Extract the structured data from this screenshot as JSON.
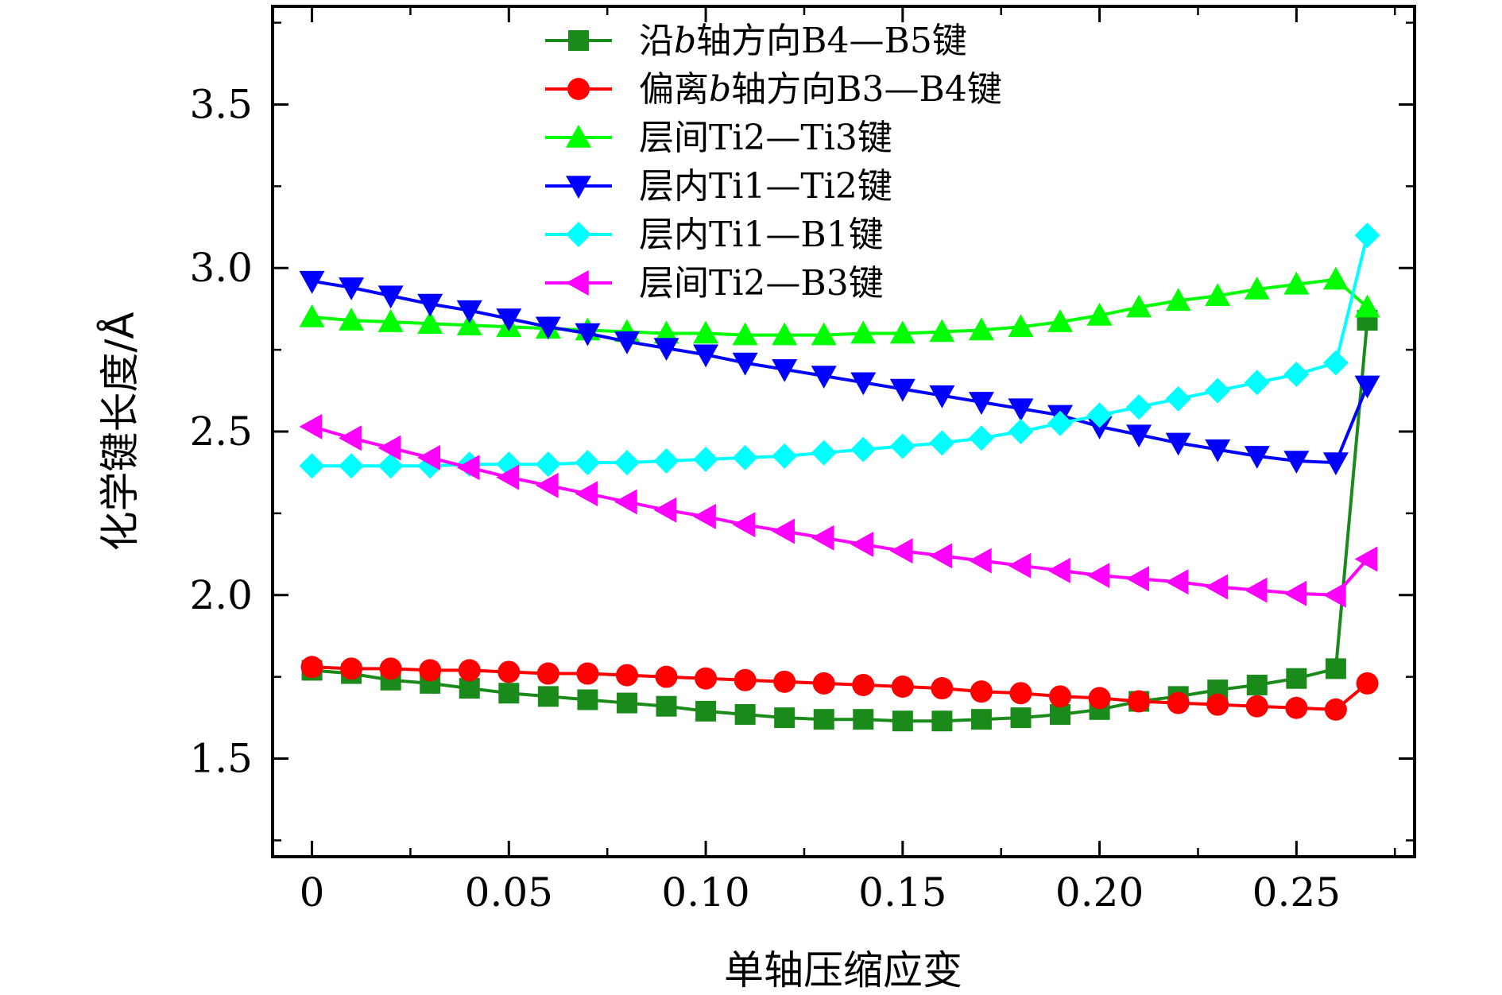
{
  "chart_data": {
    "type": "line",
    "xlabel": "单轴压缩应变",
    "ylabel": "化学键长度/Å",
    "xlim": [
      -0.01,
      0.28
    ],
    "ylim": [
      1.2,
      3.8
    ],
    "x_ticks": [
      0,
      0.05,
      0.1,
      0.15,
      0.2,
      0.25
    ],
    "x_tick_labels": [
      "0",
      "0.05",
      "0.10",
      "0.15",
      "0.20",
      "0.25"
    ],
    "y_ticks": [
      1.5,
      2.0,
      2.5,
      3.0,
      3.5
    ],
    "y_tick_labels": [
      "1.5",
      "2.0",
      "2.5",
      "3.0",
      "3.5"
    ],
    "x": [
      0,
      0.01,
      0.02,
      0.03,
      0.04,
      0.05,
      0.06,
      0.07,
      0.08,
      0.09,
      0.1,
      0.11,
      0.12,
      0.13,
      0.14,
      0.15,
      0.16,
      0.17,
      0.18,
      0.19,
      0.2,
      0.21,
      0.22,
      0.23,
      0.24,
      0.25,
      0.26,
      0.268
    ],
    "legend_position": "top-center",
    "series": [
      {
        "name": "沿b轴方向B4—B5键",
        "name_parts": [
          "沿",
          "b",
          "轴方向B4—B5键"
        ],
        "color": "#1a8a1a",
        "marker": "square",
        "values": [
          1.77,
          1.76,
          1.74,
          1.73,
          1.715,
          1.7,
          1.69,
          1.68,
          1.67,
          1.66,
          1.645,
          1.635,
          1.625,
          1.62,
          1.62,
          1.615,
          1.615,
          1.62,
          1.625,
          1.635,
          1.65,
          1.675,
          1.69,
          1.71,
          1.725,
          1.745,
          1.775,
          2.84
        ]
      },
      {
        "name": "偏离b轴方向B3—B4键",
        "name_parts": [
          "偏离",
          "b",
          "轴方向B3—B4键"
        ],
        "color": "#ff0000",
        "marker": "circle",
        "values": [
          1.78,
          1.775,
          1.775,
          1.77,
          1.77,
          1.765,
          1.76,
          1.76,
          1.755,
          1.75,
          1.745,
          1.74,
          1.735,
          1.73,
          1.725,
          1.72,
          1.715,
          1.705,
          1.7,
          1.69,
          1.685,
          1.675,
          1.67,
          1.665,
          1.66,
          1.655,
          1.65,
          1.73
        ]
      },
      {
        "name": "层间Ti2—Ti3键",
        "name_parts": [
          "层间Ti2—Ti3键"
        ],
        "color": "#00ff00",
        "marker": "triangle-up",
        "values": [
          2.85,
          2.84,
          2.835,
          2.83,
          2.825,
          2.82,
          2.815,
          2.81,
          2.805,
          2.8,
          2.8,
          2.795,
          2.795,
          2.795,
          2.8,
          2.8,
          2.805,
          2.81,
          2.82,
          2.835,
          2.855,
          2.88,
          2.9,
          2.915,
          2.935,
          2.95,
          2.965,
          2.88
        ]
      },
      {
        "name": "层内Ti1—Ti2键",
        "name_parts": [
          "层内Ti1—Ti2键"
        ],
        "color": "#0000ff",
        "marker": "triangle-down",
        "values": [
          2.96,
          2.94,
          2.915,
          2.89,
          2.87,
          2.845,
          2.82,
          2.8,
          2.775,
          2.755,
          2.735,
          2.71,
          2.69,
          2.67,
          2.65,
          2.63,
          2.61,
          2.59,
          2.57,
          2.55,
          2.515,
          2.49,
          2.465,
          2.445,
          2.425,
          2.41,
          2.405,
          2.64
        ]
      },
      {
        "name": "层内Ti1—B1键",
        "name_parts": [
          "层内Ti1—B1键"
        ],
        "color": "#00ffff",
        "marker": "diamond",
        "values": [
          2.395,
          2.395,
          2.395,
          2.395,
          2.4,
          2.4,
          2.4,
          2.405,
          2.405,
          2.41,
          2.415,
          2.42,
          2.425,
          2.435,
          2.445,
          2.455,
          2.465,
          2.48,
          2.5,
          2.525,
          2.55,
          2.575,
          2.6,
          2.625,
          2.65,
          2.675,
          2.71,
          3.1
        ]
      },
      {
        "name": "层间Ti2—B3键",
        "name_parts": [
          "层间Ti2—B3键"
        ],
        "color": "#ff00ff",
        "marker": "triangle-left",
        "values": [
          2.515,
          2.48,
          2.45,
          2.42,
          2.39,
          2.36,
          2.335,
          2.31,
          2.285,
          2.26,
          2.24,
          2.215,
          2.195,
          2.175,
          2.155,
          2.135,
          2.12,
          2.105,
          2.09,
          2.075,
          2.06,
          2.05,
          2.04,
          2.025,
          2.015,
          2.005,
          2.0,
          2.11
        ]
      }
    ]
  }
}
